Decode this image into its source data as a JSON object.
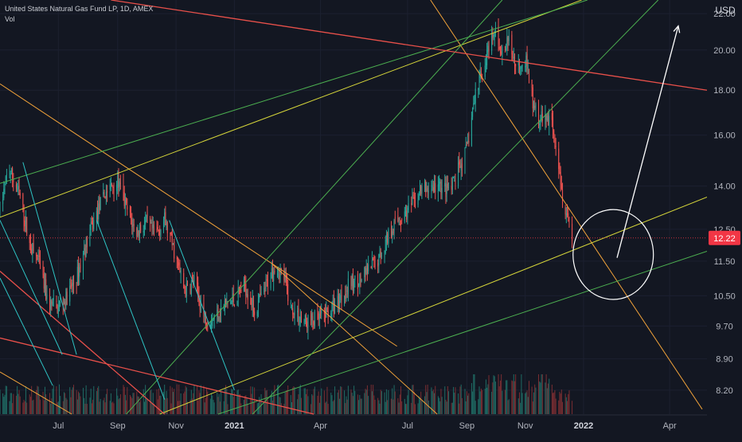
{
  "header": {
    "instrument": "United States Natural Gas Fund LP, 1D, AMEX",
    "sub": "Vol",
    "currency": "USD"
  },
  "colors": {
    "background": "#131722",
    "grid": "#1c2030",
    "up": "#26a69a",
    "down": "#ef5350",
    "vol_up": "#1f6b64",
    "vol_down": "#7a2e32",
    "orange": "#f2a33a",
    "yellow": "#d6d63a",
    "green": "#4caf50",
    "red": "#e8504a",
    "cyan": "#2ec4c4",
    "price_tag": "#f23645",
    "white": "#ffffff"
  },
  "chart_data": {
    "type": "candlestick",
    "yaxis": {
      "scale": "log",
      "ticks": [
        "22.00",
        "20.00",
        "18.00",
        "16.00",
        "14.00",
        "12.50",
        "11.50",
        "10.50",
        "9.70",
        "8.90",
        "8.20"
      ],
      "tick_values": [
        22.0,
        20.0,
        18.0,
        16.0,
        14.0,
        12.5,
        11.5,
        10.5,
        9.7,
        8.9,
        8.2
      ],
      "range": [
        7.7,
        22.8
      ]
    },
    "xaxis": {
      "ticks": [
        {
          "label": "Jul",
          "date": "2020-07-01",
          "bold": false
        },
        {
          "label": "Sep",
          "date": "2020-09-01",
          "bold": false
        },
        {
          "label": "Nov",
          "date": "2020-11-01",
          "bold": false
        },
        {
          "label": "2021",
          "date": "2021-01-01",
          "bold": true
        },
        {
          "label": "Apr",
          "date": "2021-04-01",
          "bold": false
        },
        {
          "label": "Jul",
          "date": "2021-07-01",
          "bold": false
        },
        {
          "label": "Sep",
          "date": "2021-09-01",
          "bold": false
        },
        {
          "label": "Nov",
          "date": "2021-11-01",
          "bold": false
        },
        {
          "label": "2022",
          "date": "2022-01-01",
          "bold": true
        },
        {
          "label": "Apr",
          "date": "2022-04-01",
          "bold": false
        }
      ],
      "range": [
        "2020-05-01",
        "2022-05-10"
      ]
    },
    "last_price": {
      "label": "12.22",
      "value": 12.22
    },
    "price_path": [
      [
        "2020-05-01",
        13.1
      ],
      [
        "2020-05-10",
        14.7
      ],
      [
        "2020-05-22",
        13.6
      ],
      [
        "2020-06-01",
        12.0
      ],
      [
        "2020-06-10",
        11.5
      ],
      [
        "2020-06-20",
        10.3
      ],
      [
        "2020-07-01",
        10.2
      ],
      [
        "2020-07-10",
        10.5
      ],
      [
        "2020-07-20",
        11.0
      ],
      [
        "2020-08-01",
        12.2
      ],
      [
        "2020-08-10",
        13.0
      ],
      [
        "2020-08-20",
        13.8
      ],
      [
        "2020-09-01",
        14.2
      ],
      [
        "2020-09-10",
        13.2
      ],
      [
        "2020-09-20",
        12.4
      ],
      [
        "2020-10-01",
        12.7
      ],
      [
        "2020-10-10",
        12.3
      ],
      [
        "2020-10-20",
        12.8
      ],
      [
        "2020-11-01",
        11.6
      ],
      [
        "2020-11-10",
        10.6
      ],
      [
        "2020-11-20",
        10.9
      ],
      [
        "2020-12-01",
        9.9
      ],
      [
        "2020-12-10",
        9.9
      ],
      [
        "2020-12-20",
        10.2
      ],
      [
        "2021-01-01",
        10.4
      ],
      [
        "2021-01-12",
        10.8
      ],
      [
        "2021-01-22",
        10.1
      ],
      [
        "2021-02-01",
        10.6
      ],
      [
        "2021-02-12",
        11.4
      ],
      [
        "2021-02-22",
        11.0
      ],
      [
        "2021-03-01",
        10.2
      ],
      [
        "2021-03-15",
        9.8
      ],
      [
        "2021-04-01",
        9.9
      ],
      [
        "2021-04-15",
        10.2
      ],
      [
        "2021-05-01",
        10.8
      ],
      [
        "2021-05-15",
        11.0
      ],
      [
        "2021-06-01",
        11.6
      ],
      [
        "2021-06-15",
        12.6
      ],
      [
        "2021-07-01",
        13.1
      ],
      [
        "2021-07-15",
        13.8
      ],
      [
        "2021-08-01",
        14.0
      ],
      [
        "2021-08-15",
        13.8
      ],
      [
        "2021-09-01",
        15.4
      ],
      [
        "2021-09-10",
        17.8
      ],
      [
        "2021-09-20",
        19.4
      ],
      [
        "2021-10-01",
        21.0
      ],
      [
        "2021-10-08",
        19.8
      ],
      [
        "2021-10-15",
        20.5
      ],
      [
        "2021-10-22",
        19.2
      ],
      [
        "2021-11-01",
        19.6
      ],
      [
        "2021-11-10",
        17.2
      ],
      [
        "2021-11-20",
        16.6
      ],
      [
        "2021-11-28",
        16.9
      ],
      [
        "2021-12-05",
        15.3
      ],
      [
        "2021-12-10",
        13.6
      ],
      [
        "2021-12-13",
        13.3
      ],
      [
        "2021-12-20",
        12.3
      ]
    ],
    "volume_scale_note": "relative",
    "drawings": [
      {
        "color": "orange",
        "from": [
          "2020-05-01",
          18.3
        ],
        "to": [
          "2021-06-20",
          9.2
        ],
        "width": 1
      },
      {
        "color": "orange",
        "from": [
          "2021-07-25",
          22.8
        ],
        "to": [
          "2022-05-05",
          7.8
        ],
        "width": 1
      },
      {
        "color": "orange",
        "from": [
          "2020-05-01",
          8.6
        ],
        "to": [
          "2020-07-15",
          7.7
        ],
        "width": 1
      },
      {
        "color": "orange",
        "from": [
          "2021-02-10",
          11.4
        ],
        "to": [
          "2021-08-01",
          7.7
        ],
        "width": 1
      },
      {
        "color": "yellow",
        "from": [
          "2020-05-01",
          12.9
        ],
        "to": [
          "2021-12-30",
          22.8
        ],
        "width": 1
      },
      {
        "color": "yellow",
        "from": [
          "2020-10-15",
          7.7
        ],
        "to": [
          "2022-05-10",
          13.6
        ],
        "width": 1
      },
      {
        "color": "green",
        "from": [
          "2020-05-01",
          14.1
        ],
        "to": [
          "2022-01-05",
          22.8
        ],
        "width": 1
      },
      {
        "color": "green",
        "from": [
          "2020-12-15",
          7.7
        ],
        "to": [
          "2022-05-10",
          11.8
        ],
        "width": 1
      },
      {
        "color": "green",
        "from": [
          "2020-09-10",
          7.7
        ],
        "to": [
          "2021-10-08",
          22.8
        ],
        "width": 1
      },
      {
        "color": "green",
        "from": [
          "2021-01-20",
          7.7
        ],
        "to": [
          "2022-03-20",
          22.8
        ],
        "width": 1
      },
      {
        "color": "red",
        "from": [
          "2020-08-25",
          22.8
        ],
        "to": [
          "2022-05-10",
          18.0
        ],
        "width": 1.3
      },
      {
        "color": "red",
        "from": [
          "2020-05-01",
          11.2
        ],
        "to": [
          "2020-10-20",
          7.7
        ],
        "width": 1.3
      },
      {
        "color": "red",
        "from": [
          "2020-05-01",
          9.4
        ],
        "to": [
          "2021-03-25",
          7.7
        ],
        "width": 1.3
      },
      {
        "color": "cyan",
        "from": [
          "2020-05-25",
          14.9
        ],
        "to": [
          "2020-07-20",
          9.0
        ],
        "width": 1
      },
      {
        "color": "cyan",
        "from": [
          "2020-08-10",
          12.8
        ],
        "to": [
          "2020-10-20",
          8.0
        ],
        "width": 1
      },
      {
        "color": "cyan",
        "from": [
          "2020-10-25",
          12.8
        ],
        "to": [
          "2021-01-01",
          8.2
        ],
        "width": 1
      },
      {
        "color": "cyan",
        "from": [
          "2020-05-01",
          12.8
        ],
        "to": [
          "2020-07-05",
          9.0
        ],
        "width": 1
      },
      {
        "color": "cyan",
        "from": [
          "2020-05-01",
          11.0
        ],
        "to": [
          "2020-06-25",
          8.3
        ],
        "width": 1
      }
    ],
    "annotations": [
      {
        "type": "ellipse",
        "center": [
          "2022-02-01",
          11.7
        ],
        "radius_days": 42,
        "radius_value_low": 10.35,
        "radius_value_high": 13.1,
        "color": "white"
      },
      {
        "type": "arrow",
        "from": [
          "2022-02-05",
          11.6
        ],
        "to": [
          "2022-04-10",
          21.3
        ],
        "color": "white"
      }
    ]
  }
}
